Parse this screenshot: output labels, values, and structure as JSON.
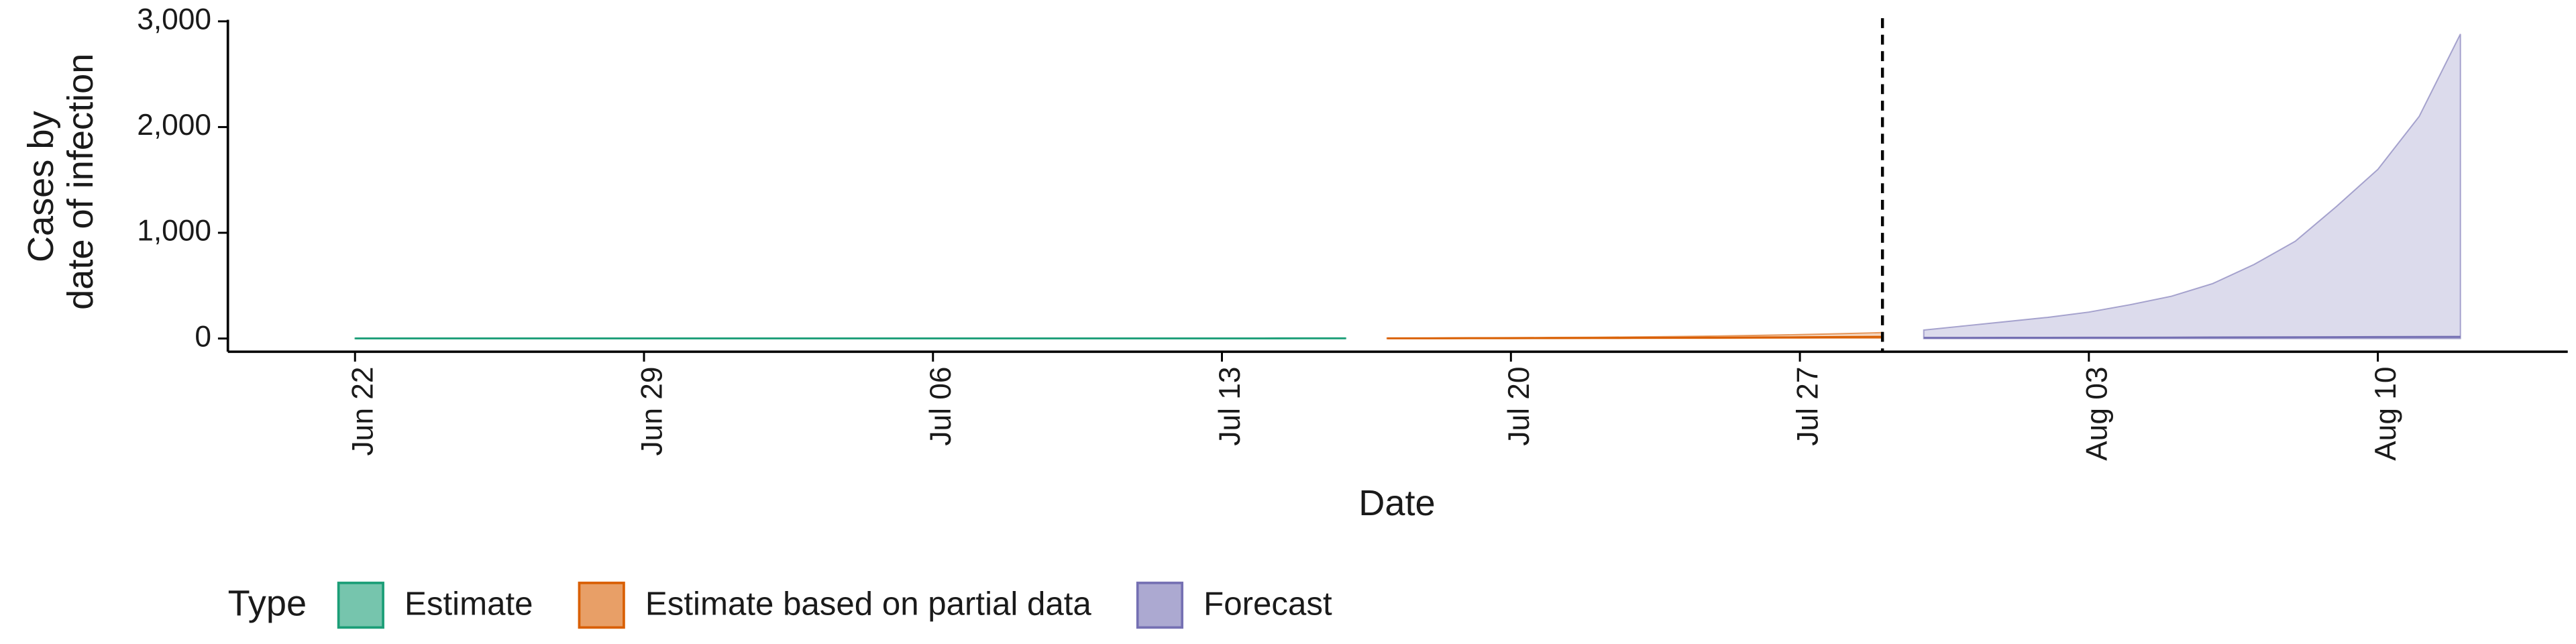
{
  "chart_data": {
    "type": "ribbon",
    "xlabel": "Date",
    "ylabel": [
      "Cases by",
      "date of infection"
    ],
    "ylim": [
      -125,
      3030
    ],
    "yticks": [
      0,
      {
        "value": 1000,
        "label": "1,000"
      },
      {
        "value": 2000,
        "label": "2,000"
      },
      {
        "value": 3000,
        "label": "3,000"
      }
    ],
    "xticks": [
      "Jun 22",
      "Jun 29",
      "Jul 06",
      "Jul 13",
      "Jul 20",
      "Jul 27",
      "Aug 03",
      "Aug 10"
    ],
    "vline_x": "Jul 29",
    "legend_title": "Type",
    "legend_position": "bottom",
    "series": [
      {
        "name": "Estimate",
        "color": "#1b9e77",
        "x": [
          "Jun 22",
          "Jun 23",
          "Jun 24",
          "Jun 25",
          "Jun 26",
          "Jun 27",
          "Jun 28",
          "Jun 29",
          "Jun 30",
          "Jul 01",
          "Jul 02",
          "Jul 03",
          "Jul 04",
          "Jul 05",
          "Jul 06",
          "Jul 07",
          "Jul 08",
          "Jul 09",
          "Jul 10",
          "Jul 11",
          "Jul 12",
          "Jul 13",
          "Jul 14",
          "Jul 15",
          "Jul 16"
        ],
        "values": [
          1,
          1,
          1,
          1,
          1,
          1,
          1,
          1,
          1,
          1,
          1,
          1,
          1,
          1,
          1,
          1,
          1,
          1,
          1,
          1,
          1,
          1,
          1,
          2,
          2
        ],
        "lower": [
          0,
          0,
          0,
          0,
          0,
          0,
          0,
          0,
          0,
          0,
          0,
          0,
          0,
          0,
          0,
          0,
          0,
          0,
          0,
          0,
          0,
          0,
          0,
          0,
          0
        ],
        "upper": [
          2,
          2,
          2,
          2,
          2,
          2,
          2,
          2,
          2,
          2,
          2,
          2,
          2,
          2,
          2,
          2,
          2,
          3,
          3,
          3,
          3,
          3,
          4,
          4,
          4
        ]
      },
      {
        "name": "Estimate based on partial data",
        "color": "#d95f02",
        "x": [
          "Jul 17",
          "Jul 18",
          "Jul 19",
          "Jul 20",
          "Jul 21",
          "Jul 22",
          "Jul 23",
          "Jul 24",
          "Jul 25",
          "Jul 26",
          "Jul 27",
          "Jul 28",
          "Jul 29"
        ],
        "values": [
          2,
          2,
          3,
          3,
          4,
          5,
          6,
          7,
          8,
          10,
          12,
          14,
          16
        ],
        "lower": [
          0,
          0,
          1,
          1,
          1,
          1,
          2,
          2,
          2,
          3,
          3,
          4,
          4
        ],
        "upper": [
          4,
          5,
          6,
          8,
          10,
          12,
          15,
          19,
          24,
          30,
          37,
          46,
          56
        ]
      },
      {
        "name": "Forecast",
        "color": "#7570b3",
        "x": [
          "Jul 30",
          "Jul 31",
          "Aug 01",
          "Aug 02",
          "Aug 03",
          "Aug 04",
          "Aug 05",
          "Aug 06",
          "Aug 07",
          "Aug 08",
          "Aug 09",
          "Aug 10",
          "Aug 11",
          "Aug 12"
        ],
        "values": [
          6,
          6,
          7,
          7,
          8,
          8,
          9,
          10,
          11,
          12,
          13,
          14,
          15,
          16
        ],
        "lower": [
          0,
          0,
          0,
          0,
          0,
          0,
          0,
          0,
          0,
          0,
          0,
          0,
          0,
          0
        ],
        "upper": [
          80,
          120,
          160,
          200,
          250,
          320,
          400,
          520,
          700,
          920,
          1250,
          1600,
          2100,
          2880
        ]
      }
    ]
  }
}
